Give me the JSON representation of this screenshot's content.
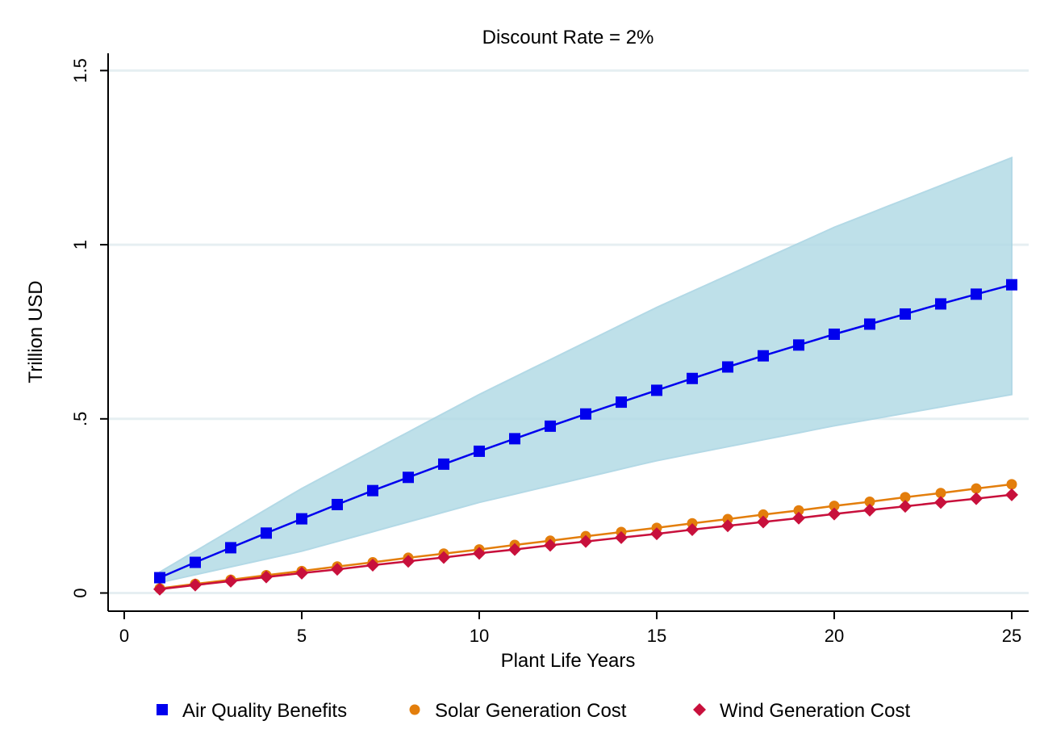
{
  "chart_data": {
    "type": "line",
    "title": "Discount Rate = 2%",
    "xlabel": "Plant Life Years",
    "ylabel": "Trillion USD",
    "xlim": [
      0,
      25
    ],
    "ylim": [
      0,
      1.5
    ],
    "xticks": [
      0,
      5,
      10,
      15,
      20,
      25
    ],
    "xtick_labels": [
      "0",
      "5",
      "10",
      "15",
      "20",
      "25"
    ],
    "yticks": [
      0,
      0.5,
      1,
      1.5
    ],
    "ytick_labels": [
      "0",
      ".5",
      "1",
      "1.5"
    ],
    "grid": "horizontal",
    "legend_position": "bottom",
    "x": [
      1,
      2,
      3,
      4,
      5,
      6,
      7,
      8,
      9,
      10,
      11,
      12,
      13,
      14,
      15,
      16,
      17,
      18,
      19,
      20,
      21,
      22,
      23,
      24,
      25
    ],
    "series": [
      {
        "name": "Air Quality Benefits",
        "marker": "square",
        "color": "#0000ee",
        "values": [
          0.044,
          0.088,
          0.13,
          0.172,
          0.213,
          0.254,
          0.294,
          0.332,
          0.37,
          0.407,
          0.443,
          0.479,
          0.514,
          0.548,
          0.582,
          0.616,
          0.649,
          0.681,
          0.712,
          0.743,
          0.772,
          0.801,
          0.83,
          0.858,
          0.885
        ]
      },
      {
        "name": "Solar Generation Cost",
        "marker": "circle",
        "color": "#e37e0c",
        "values": [
          0.013,
          0.026,
          0.038,
          0.051,
          0.063,
          0.076,
          0.088,
          0.101,
          0.113,
          0.125,
          0.138,
          0.15,
          0.163,
          0.175,
          0.187,
          0.2,
          0.212,
          0.225,
          0.237,
          0.25,
          0.262,
          0.275,
          0.287,
          0.3,
          0.312
        ]
      },
      {
        "name": "Wind Generation Cost",
        "marker": "diamond",
        "color": "#c8103c",
        "values": [
          0.011,
          0.023,
          0.034,
          0.046,
          0.057,
          0.068,
          0.08,
          0.091,
          0.102,
          0.114,
          0.125,
          0.137,
          0.148,
          0.159,
          0.17,
          0.182,
          0.193,
          0.204,
          0.215,
          0.227,
          0.238,
          0.249,
          0.26,
          0.271,
          0.282
        ]
      }
    ],
    "confidence_band": {
      "color": "#b3dbe6",
      "x": [
        1,
        5,
        10,
        15,
        20,
        25
      ],
      "lower": [
        0.03,
        0.12,
        0.26,
        0.38,
        0.48,
        0.57
      ],
      "upper": [
        0.06,
        0.3,
        0.57,
        0.82,
        1.05,
        1.25
      ]
    }
  }
}
